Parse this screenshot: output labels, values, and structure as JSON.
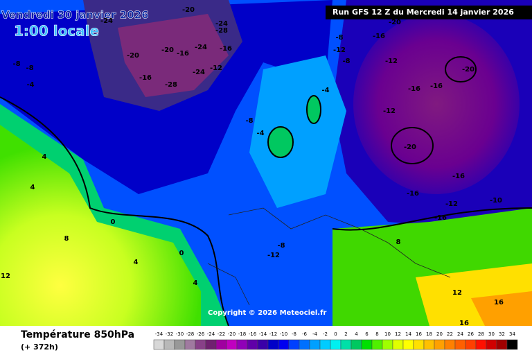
{
  "header": {
    "title": "Vendredi 30 janvier 2026",
    "time": "1:00 locale",
    "run": "Run GFS 12 Z du Mercredi 14 janvier 2026"
  },
  "copyright": "Copyright © 2026 Meteociel.fr",
  "footer": {
    "title": "Température 850hPa",
    "lead": "(+ 372h)"
  },
  "scale": {
    "values": [
      -34,
      -32,
      -30,
      -28,
      -26,
      -24,
      -22,
      -20,
      -18,
      -16,
      -14,
      -12,
      -10,
      -8,
      -6,
      -4,
      -2,
      0,
      2,
      4,
      6,
      8,
      10,
      12,
      14,
      16,
      18,
      20,
      22,
      24,
      26,
      28,
      30,
      32,
      34
    ],
    "colors": [
      "#d8d8d8",
      "#b8b8b8",
      "#989898",
      "#a07aa0",
      "#884088",
      "#702070",
      "#a000a0",
      "#c000c0",
      "#9000b8",
      "#6000a8",
      "#3a00a8",
      "#0000c8",
      "#0000f0",
      "#0040ff",
      "#0070ff",
      "#00a0ff",
      "#00ccff",
      "#00f0f0",
      "#00e0a8",
      "#00c860",
      "#00e000",
      "#50f000",
      "#a0ff00",
      "#e0ff00",
      "#ffff00",
      "#ffe000",
      "#ffc000",
      "#ffa000",
      "#ff8000",
      "#ff6000",
      "#ff4000",
      "#ff1000",
      "#d00000",
      "#a00000",
      "#000000"
    ]
  },
  "map_labels": [
    -20,
    -24,
    -24,
    -28,
    -20,
    -20,
    -16,
    -24,
    -16,
    -16,
    -28,
    -24,
    -8,
    -8,
    -4,
    -12,
    -8,
    -16,
    -12,
    -20,
    -12,
    -20,
    -16,
    -16,
    -12,
    -20,
    -16,
    -16,
    -12,
    -10,
    -16,
    -8,
    -4,
    -8,
    -4,
    -12,
    -8,
    0,
    0,
    4,
    4,
    8,
    12,
    4,
    4,
    12,
    16,
    16,
    8
  ]
}
